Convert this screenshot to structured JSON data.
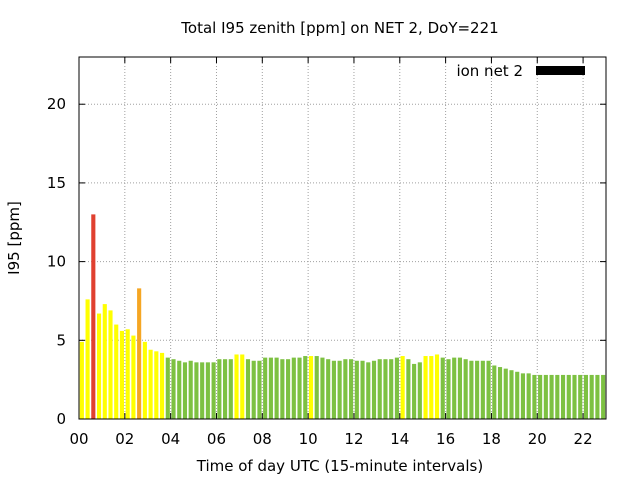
{
  "chart_data": {
    "type": "bar",
    "title": "Total I95 zenith [ppm] on NET 2, DoY=221",
    "xlabel": "Time of day UTC (15-minute intervals)",
    "ylabel": "I95 [ppm]",
    "xlim": [
      0,
      23
    ],
    "ylim": [
      0,
      23
    ],
    "x_ticks": [
      {
        "value": 0,
        "label": "00"
      },
      {
        "value": 2,
        "label": "02"
      },
      {
        "value": 4,
        "label": "04"
      },
      {
        "value": 6,
        "label": "06"
      },
      {
        "value": 8,
        "label": "08"
      },
      {
        "value": 10,
        "label": "10"
      },
      {
        "value": 12,
        "label": "12"
      },
      {
        "value": 14,
        "label": "14"
      },
      {
        "value": 16,
        "label": "16"
      },
      {
        "value": 18,
        "label": "18"
      },
      {
        "value": 20,
        "label": "20"
      },
      {
        "value": 22,
        "label": "22"
      }
    ],
    "y_ticks": [
      {
        "value": 0,
        "label": "0"
      },
      {
        "value": 5,
        "label": "5"
      },
      {
        "value": 10,
        "label": "10"
      },
      {
        "value": 15,
        "label": "15"
      },
      {
        "value": 20,
        "label": "20"
      }
    ],
    "grid": true,
    "legend": {
      "position": "top-right",
      "entries": [
        {
          "label": "ion net 2",
          "color": "#000000"
        }
      ]
    },
    "bar_step_hours": 0.25,
    "colors": {
      "green": "#7dc142",
      "yellow": "#ffff00",
      "orange": "#f5a623",
      "red": "#e04030"
    },
    "x": [
      0.0,
      0.25,
      0.5,
      0.75,
      1.0,
      1.25,
      1.5,
      1.75,
      2.0,
      2.25,
      2.5,
      2.75,
      3.0,
      3.25,
      3.5,
      3.75,
      4.0,
      4.25,
      4.5,
      4.75,
      5.0,
      5.25,
      5.5,
      5.75,
      6.0,
      6.25,
      6.5,
      6.75,
      7.0,
      7.25,
      7.5,
      7.75,
      8.0,
      8.25,
      8.5,
      8.75,
      9.0,
      9.25,
      9.5,
      9.75,
      10.0,
      10.25,
      10.5,
      10.75,
      11.0,
      11.25,
      11.5,
      11.75,
      12.0,
      12.25,
      12.5,
      12.75,
      13.0,
      13.25,
      13.5,
      13.75,
      14.0,
      14.25,
      14.5,
      14.75,
      15.0,
      15.25,
      15.5,
      15.75,
      16.0,
      16.25,
      16.5,
      16.75,
      17.0,
      17.25,
      17.5,
      17.75,
      18.0,
      18.25,
      18.5,
      18.75,
      19.0,
      19.25,
      19.5,
      19.75,
      20.0,
      20.25,
      20.5,
      20.75,
      21.0,
      21.25,
      21.5,
      21.75,
      22.0,
      22.25,
      22.5,
      22.75
    ],
    "values": [
      4.9,
      7.6,
      13.0,
      6.7,
      7.3,
      6.9,
      6.0,
      5.6,
      5.7,
      5.3,
      8.3,
      4.9,
      4.4,
      4.3,
      4.2,
      3.9,
      3.8,
      3.7,
      3.6,
      3.7,
      3.6,
      3.6,
      3.6,
      3.6,
      3.8,
      3.8,
      3.8,
      4.1,
      4.1,
      3.8,
      3.7,
      3.7,
      3.9,
      3.9,
      3.9,
      3.8,
      3.8,
      3.9,
      3.9,
      4.0,
      4.0,
      4.0,
      3.9,
      3.8,
      3.7,
      3.7,
      3.8,
      3.8,
      3.7,
      3.7,
      3.6,
      3.7,
      3.8,
      3.8,
      3.8,
      3.9,
      4.0,
      3.8,
      3.5,
      3.6,
      4.0,
      4.0,
      4.1,
      3.9,
      3.8,
      3.9,
      3.9,
      3.8,
      3.7,
      3.7,
      3.7,
      3.7,
      3.4,
      3.3,
      3.2,
      3.1,
      3.0,
      2.9,
      2.9,
      2.8,
      2.8,
      2.8,
      2.8,
      2.8,
      2.8,
      2.8,
      2.8,
      2.8,
      2.8,
      2.8,
      2.8,
      2.8
    ],
    "bar_colors": [
      "yellow",
      "yellow",
      "red",
      "yellow",
      "yellow",
      "yellow",
      "yellow",
      "yellow",
      "yellow",
      "yellow",
      "orange",
      "yellow",
      "yellow",
      "yellow",
      "yellow",
      "green",
      "green",
      "green",
      "green",
      "green",
      "green",
      "green",
      "green",
      "green",
      "green",
      "green",
      "green",
      "yellow",
      "yellow",
      "green",
      "green",
      "green",
      "green",
      "green",
      "green",
      "green",
      "green",
      "green",
      "green",
      "green",
      "yellow",
      "green",
      "green",
      "green",
      "green",
      "green",
      "green",
      "green",
      "green",
      "green",
      "green",
      "green",
      "green",
      "green",
      "green",
      "green",
      "yellow",
      "green",
      "green",
      "green",
      "yellow",
      "yellow",
      "yellow",
      "green",
      "green",
      "green",
      "green",
      "green",
      "green",
      "green",
      "green",
      "green",
      "green",
      "green",
      "green",
      "green",
      "green",
      "green",
      "green",
      "green",
      "green",
      "green",
      "green",
      "green",
      "green",
      "green",
      "green",
      "green",
      "green",
      "green",
      "green",
      "green"
    ]
  }
}
